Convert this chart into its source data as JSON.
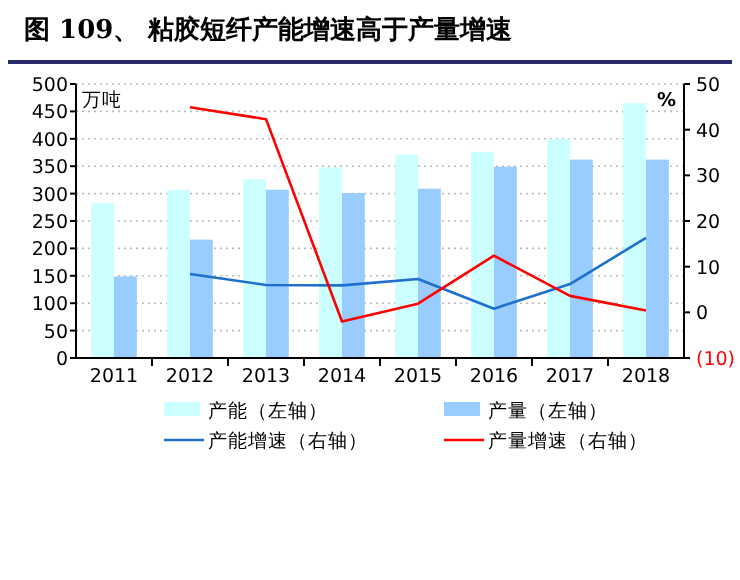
{
  "chart_data": {
    "type": "bar",
    "title": "图 109、 粘胶短纤产能增速高于产量增速",
    "ylabel": "万吨",
    "y2label": "%",
    "categories": [
      "2011",
      "2012",
      "2013",
      "2014",
      "2015",
      "2016",
      "2017",
      "2018"
    ],
    "series": [
      {
        "name": "产能（左轴）",
        "color": "#ccffff",
        "values": [
          283,
          307,
          326,
          348,
          371,
          376,
          400,
          465
        ]
      },
      {
        "name": "产量（左轴）",
        "color": "#99ccff",
        "values": [
          149,
          216,
          307,
          301,
          309,
          349,
          362,
          362
        ]
      },
      {
        "name": "产能增速（右轴）",
        "type": "line",
        "axis": "y2",
        "color": "#1f6fd0",
        "values": [
          null,
          8.4,
          6.0,
          5.9,
          7.3,
          0.8,
          6.2,
          16.3
        ]
      },
      {
        "name": "产量增速（右轴）",
        "type": "line",
        "axis": "y2",
        "color": "#ff0000",
        "values": [
          null,
          44.9,
          42.3,
          -2.0,
          1.9,
          12.4,
          3.6,
          0.4
        ]
      }
    ],
    "ylim": [
      0,
      500
    ],
    "yticks": [
      0,
      50,
      100,
      150,
      200,
      250,
      300,
      350,
      400,
      450,
      500
    ],
    "y2lim": [
      -10,
      50
    ],
    "y2ticks": [
      {
        "value": -10,
        "label": "(10)"
      },
      0,
      10,
      20,
      30,
      40,
      50
    ],
    "grid": "y",
    "legend": "bottom",
    "marker": "none",
    "line_style": "solid"
  }
}
